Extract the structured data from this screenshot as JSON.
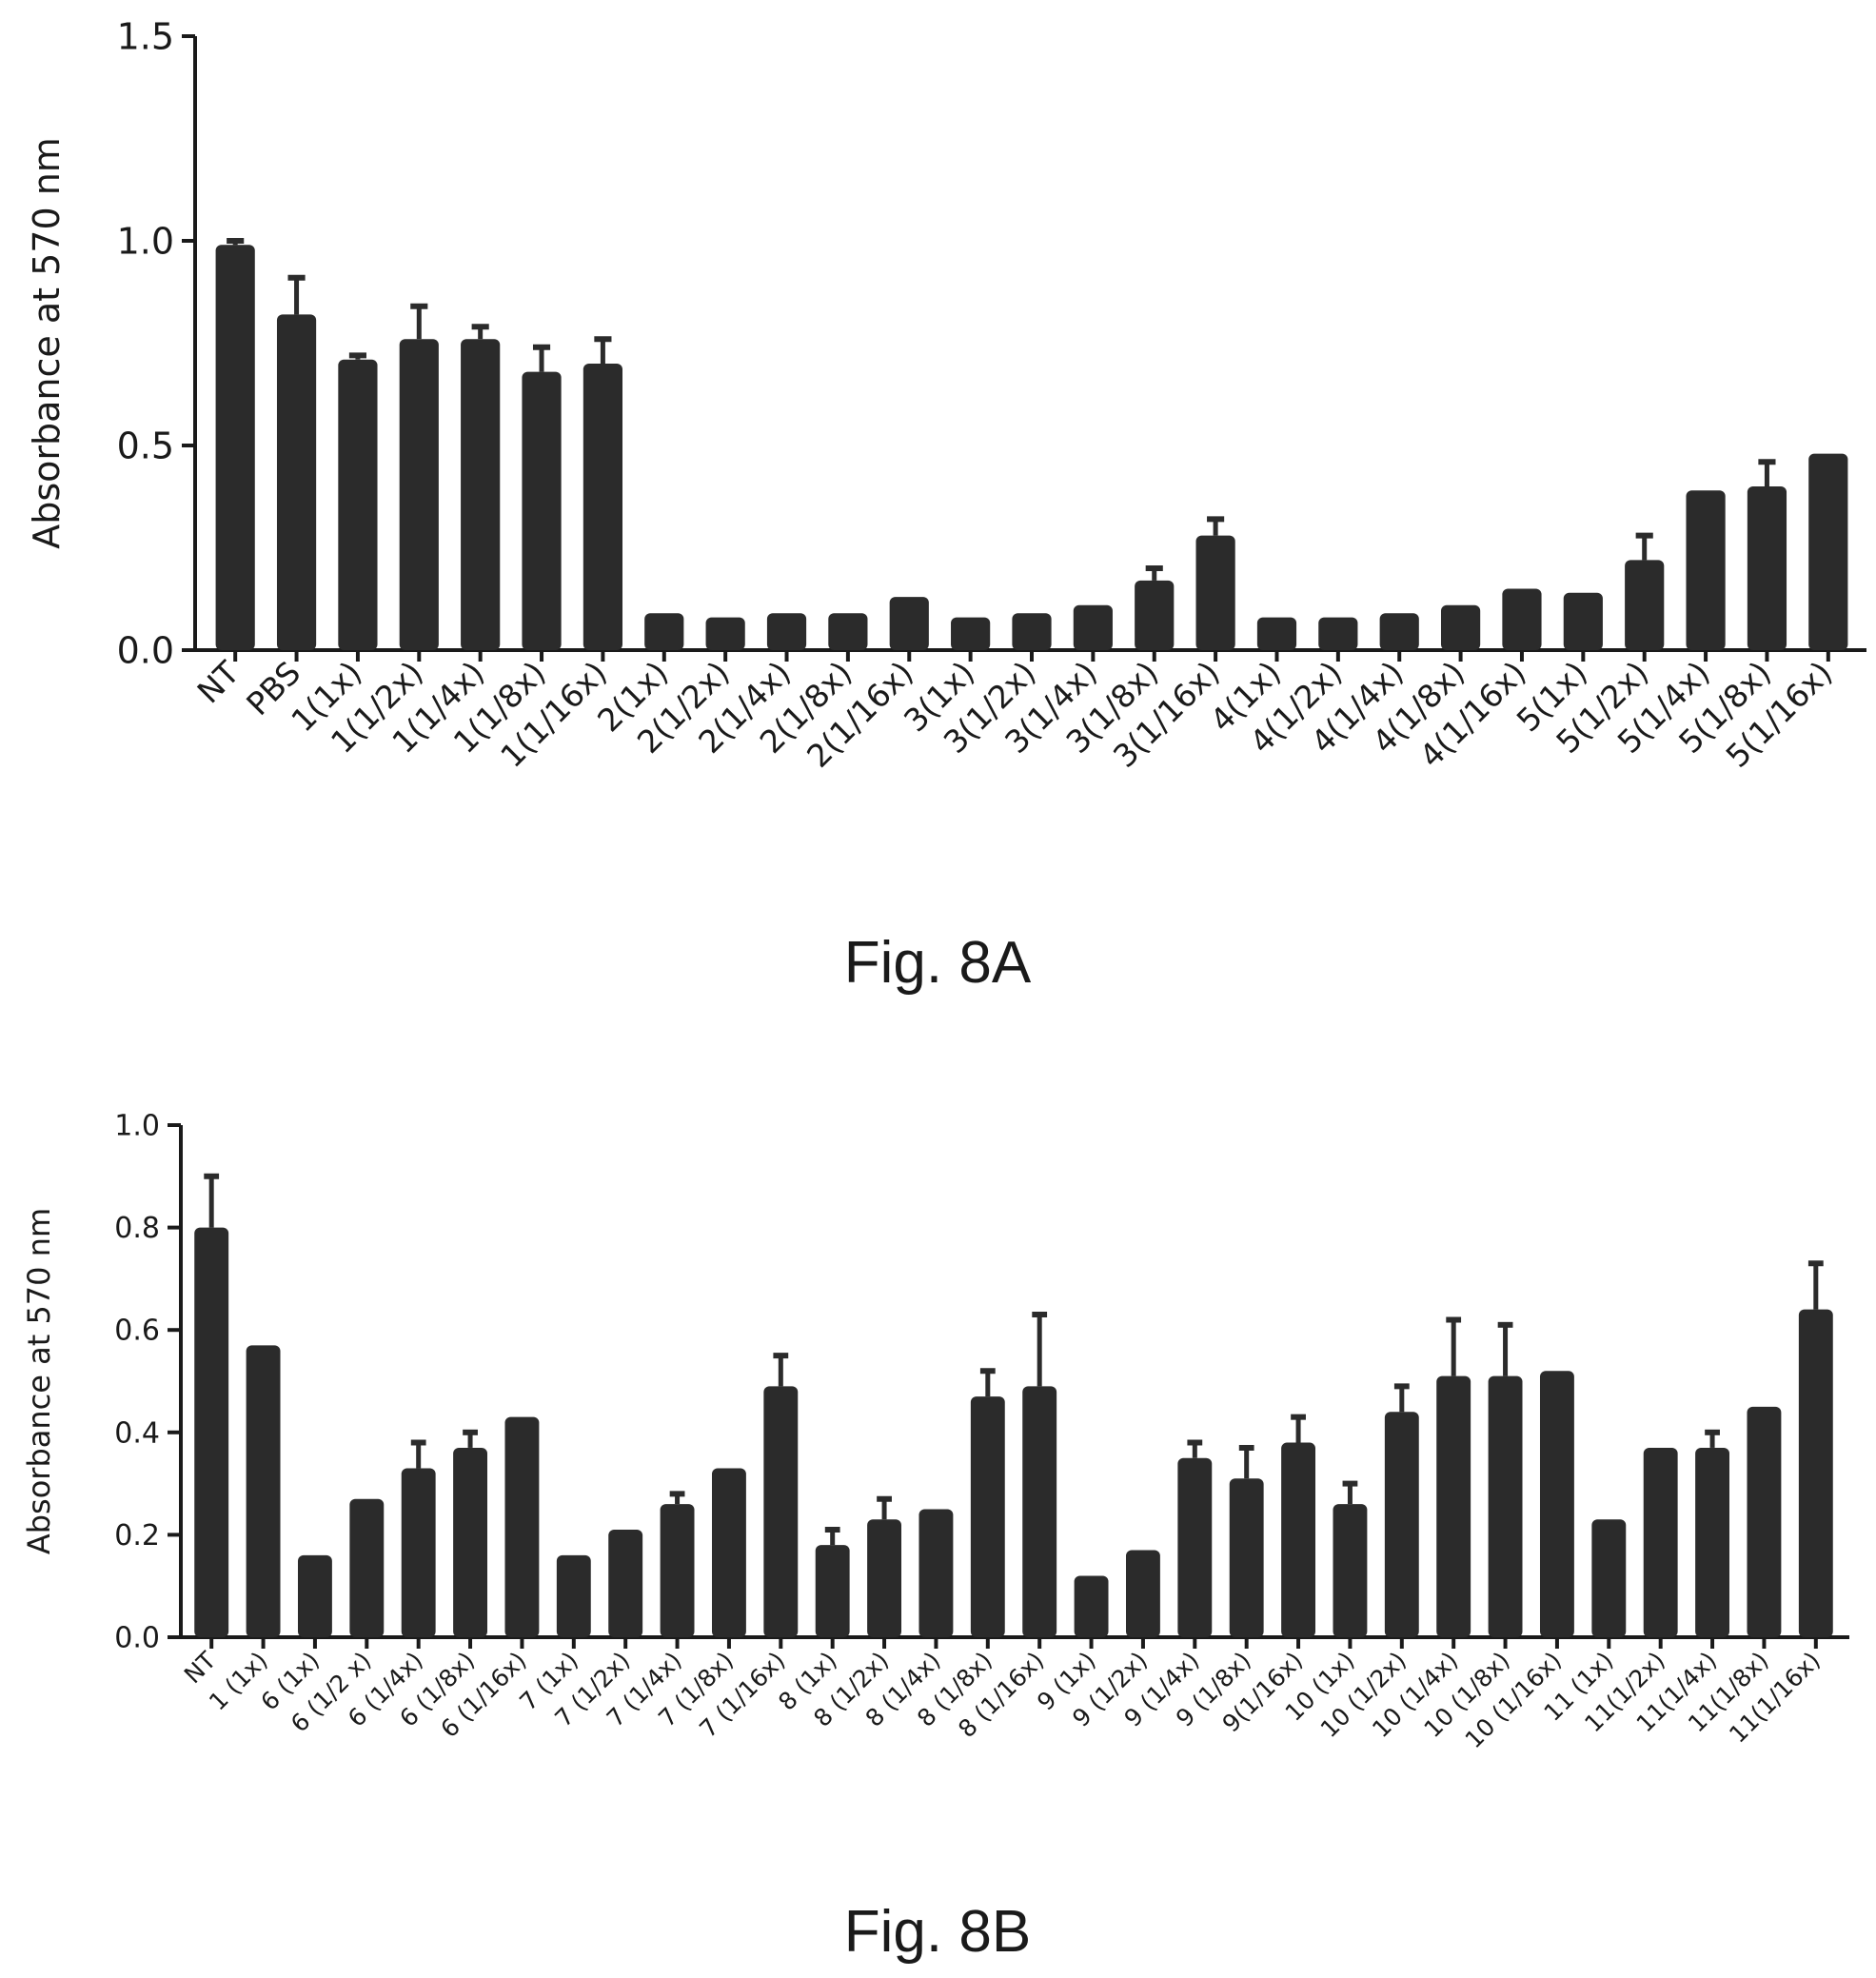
{
  "colors": {
    "bar": "#2b2b2b",
    "axis": "#1a1a1a",
    "background": "#ffffff"
  },
  "chart_data": [
    {
      "type": "bar",
      "caption": "Fig. 8A",
      "ylabel": "Absorbance at 570 nm",
      "ylim": [
        0,
        1.5
      ],
      "yticks": [
        "0.0",
        "0.5",
        "1.0",
        "1.5"
      ],
      "ytick_values": [
        0,
        0.5,
        1.0,
        1.5
      ],
      "grid": false,
      "categories": [
        "NT",
        "PBS",
        "1(1x)",
        "1(1/2x)",
        "1(1/4x)",
        "1(1/8x)",
        "1(1/16x)",
        "2(1x)",
        "2(1/2x)",
        "2(1/4x)",
        "2(1/8x)",
        "2(1/16x)",
        "3(1x)",
        "3(1/2x)",
        "3(1/4x)",
        "3(1/8x)",
        "3(1/16x)",
        "4(1x)",
        "4(1/2x)",
        "4(1/4x)",
        "4(1/8x)",
        "4(1/16x)",
        "5(1x)",
        "5(1/2x)",
        "5(1/4x)",
        "5(1/8x)",
        "5(1/16x)"
      ],
      "values": [
        0.99,
        0.82,
        0.71,
        0.76,
        0.76,
        0.68,
        0.7,
        0.09,
        0.08,
        0.09,
        0.09,
        0.13,
        0.08,
        0.09,
        0.11,
        0.17,
        0.28,
        0.08,
        0.08,
        0.09,
        0.11,
        0.15,
        0.14,
        0.22,
        0.39,
        0.4,
        0.48
      ],
      "errors": [
        0.01,
        0.09,
        0.01,
        0.08,
        0.03,
        0.06,
        0.06,
        0.0,
        0.0,
        0.0,
        0.0,
        0.0,
        0.0,
        0.0,
        0.0,
        0.03,
        0.04,
        0.0,
        0.0,
        0.0,
        0.0,
        0.0,
        0.0,
        0.06,
        0.0,
        0.06,
        0.0
      ]
    },
    {
      "type": "bar",
      "caption": "Fig. 8B",
      "ylabel": "Absorbance at 570 nm",
      "ylim": [
        0,
        1.0
      ],
      "yticks": [
        "0.0",
        "0.2",
        "0.4",
        "0.6",
        "0.8",
        "1.0"
      ],
      "ytick_values": [
        0,
        0.2,
        0.4,
        0.6,
        0.8,
        1.0
      ],
      "grid": false,
      "categories": [
        "NT",
        "1 (1x)",
        "6 (1x)",
        "6 (1/2 x)",
        "6 (1/4x)",
        "6 (1/8x)",
        "6 (1/16x)",
        "7 (1x)",
        "7 (1/2x)",
        "7 (1/4x)",
        "7 (1/8x)",
        "7 (1/16x)",
        "8 (1x)",
        "8 (1/2x)",
        "8 (1/4x)",
        "8 (1/8x)",
        "8 (1/16x)",
        "9 (1x)",
        "9 (1/2x)",
        "9 (1/4x)",
        "9 (1/8x)",
        "9(1/16x)",
        "10 (1x)",
        "10 (1/2x)",
        "10 (1/4x)",
        "10 (1/8x)",
        "10 (1/16x)",
        "11 (1x)",
        "11(1/2x)",
        "11(1/4x)",
        "11(1/8x)",
        "11(1/16x)"
      ],
      "values": [
        0.8,
        0.57,
        0.16,
        0.27,
        0.33,
        0.37,
        0.43,
        0.16,
        0.21,
        0.26,
        0.33,
        0.49,
        0.18,
        0.23,
        0.25,
        0.47,
        0.49,
        0.12,
        0.17,
        0.35,
        0.31,
        0.38,
        0.26,
        0.44,
        0.51,
        0.51,
        0.52,
        0.23,
        0.37,
        0.37,
        0.45,
        0.64
      ],
      "errors": [
        0.1,
        0.0,
        0.0,
        0.0,
        0.05,
        0.03,
        0.0,
        0.0,
        0.0,
        0.02,
        0.0,
        0.06,
        0.03,
        0.04,
        0.0,
        0.05,
        0.14,
        0.0,
        0.0,
        0.03,
        0.06,
        0.05,
        0.04,
        0.05,
        0.11,
        0.1,
        0.0,
        0.0,
        0.0,
        0.03,
        0.0,
        0.09
      ]
    }
  ]
}
